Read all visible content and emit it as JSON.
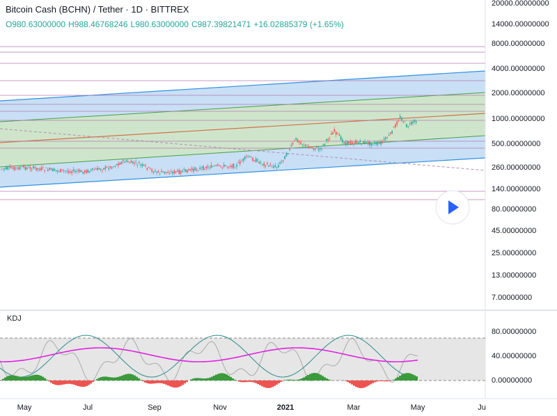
{
  "header": {
    "symbol": "Bitcoin Cash (BCHN) / Tether · 1D · BITTREX",
    "open": "O980.63000000",
    "high": "H988.46768246",
    "low": "L980.63000000",
    "close": "C987.39821471",
    "change": "+16.02885379 (+1.65%)"
  },
  "price_axis": [
    "20000.00000000",
    "14000.00000000",
    "8000.00000000",
    "4000.00000000",
    "2000.00000000",
    "1000.00000000",
    "500.00000000",
    "260.00000000",
    "140.00000000",
    "80.00000000",
    "45.00000000",
    "25.00000000",
    "13.00000000",
    "7.00000000"
  ],
  "indicator": {
    "name": "KDJ",
    "axis": [
      "80.00000000",
      "40.00000000",
      "0.00000000"
    ]
  },
  "time_axis": [
    "May",
    "Jul",
    "Sep",
    "Nov",
    "2021",
    "Mar",
    "May",
    "Ju"
  ]
}
